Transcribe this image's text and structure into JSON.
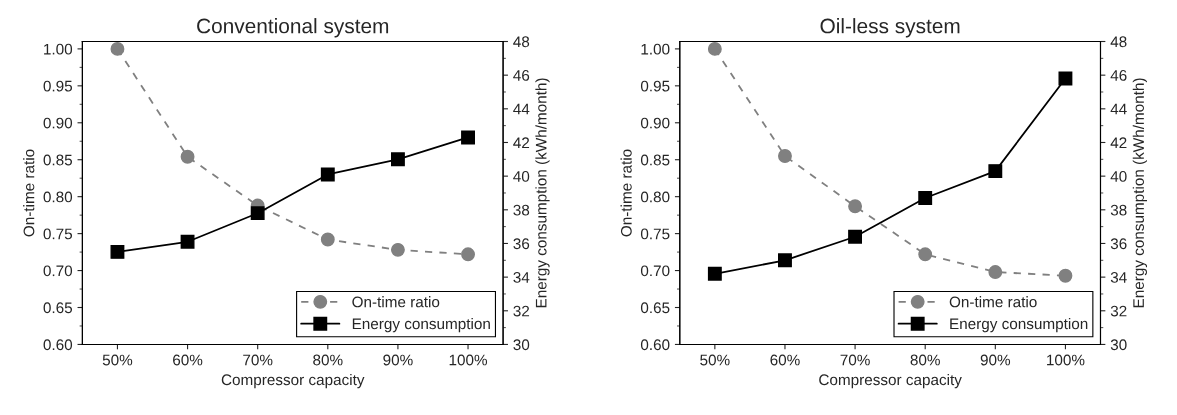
{
  "chart_data": [
    {
      "type": "line",
      "title": "Conventional system",
      "xlabel": "Compressor capacity",
      "ylabel": "On-time ratio",
      "y2label": "Energy consumption (kWh/month)",
      "categories": [
        "50%",
        "60%",
        "70%",
        "80%",
        "90%",
        "100%"
      ],
      "series": [
        {
          "name": "On-time ratio",
          "color": "#808080",
          "marker": "circle",
          "line_style": "dashed",
          "values": [
            1.0,
            0.854,
            0.788,
            0.742,
            0.728,
            0.722
          ]
        },
        {
          "name": "Energy consumption",
          "color": "#000000",
          "marker": "square",
          "line_style": "solid",
          "axis": "y2",
          "values": [
            35.5,
            36.1,
            37.8,
            40.1,
            41.0,
            42.3
          ]
        }
      ],
      "ylim": [
        0.6,
        1.01
      ],
      "yticks": [
        {
          "value": 0.6,
          "label": "0.60"
        },
        {
          "value": 0.65,
          "label": "0.65"
        },
        {
          "value": 0.7,
          "label": "0.70"
        },
        {
          "value": 0.75,
          "label": "0.75"
        },
        {
          "value": 0.8,
          "label": "0.80"
        },
        {
          "value": 0.85,
          "label": "0.85"
        },
        {
          "value": 0.9,
          "label": "0.90"
        },
        {
          "value": 0.95,
          "label": "0.95"
        },
        {
          "value": 1.0,
          "label": "1.00"
        }
      ],
      "y2lim": [
        30,
        48
      ],
      "y2ticks": [
        30,
        32,
        34,
        36,
        38,
        40,
        42,
        44,
        46,
        48
      ],
      "grid": false,
      "legend": "bottom right"
    },
    {
      "type": "line",
      "title": "Oil-less system",
      "xlabel": "Compressor capacity",
      "ylabel": "On-time ratio",
      "y2label": "Energy consumption (kWh/month)",
      "categories": [
        "50%",
        "60%",
        "70%",
        "80%",
        "90%",
        "100%"
      ],
      "series": [
        {
          "name": "On-time ratio",
          "color": "#808080",
          "marker": "circle",
          "line_style": "dashed",
          "values": [
            1.0,
            0.855,
            0.787,
            0.722,
            0.698,
            0.693
          ]
        },
        {
          "name": "Energy consumption",
          "color": "#000000",
          "marker": "square",
          "line_style": "solid",
          "axis": "y2",
          "values": [
            34.2,
            35.0,
            36.4,
            38.7,
            40.3,
            45.8
          ]
        }
      ],
      "ylim": [
        0.6,
        1.01
      ],
      "yticks": [
        {
          "value": 0.6,
          "label": "0.60"
        },
        {
          "value": 0.65,
          "label": "0.65"
        },
        {
          "value": 0.7,
          "label": "0.70"
        },
        {
          "value": 0.75,
          "label": "0.75"
        },
        {
          "value": 0.8,
          "label": "0.80"
        },
        {
          "value": 0.85,
          "label": "0.85"
        },
        {
          "value": 0.9,
          "label": "0.90"
        },
        {
          "value": 0.95,
          "label": "0.95"
        },
        {
          "value": 1.0,
          "label": "1.00"
        }
      ],
      "y2lim": [
        30,
        48
      ],
      "y2ticks": [
        30,
        32,
        34,
        36,
        38,
        40,
        42,
        44,
        46,
        48
      ],
      "grid": false,
      "legend": "bottom right"
    }
  ]
}
